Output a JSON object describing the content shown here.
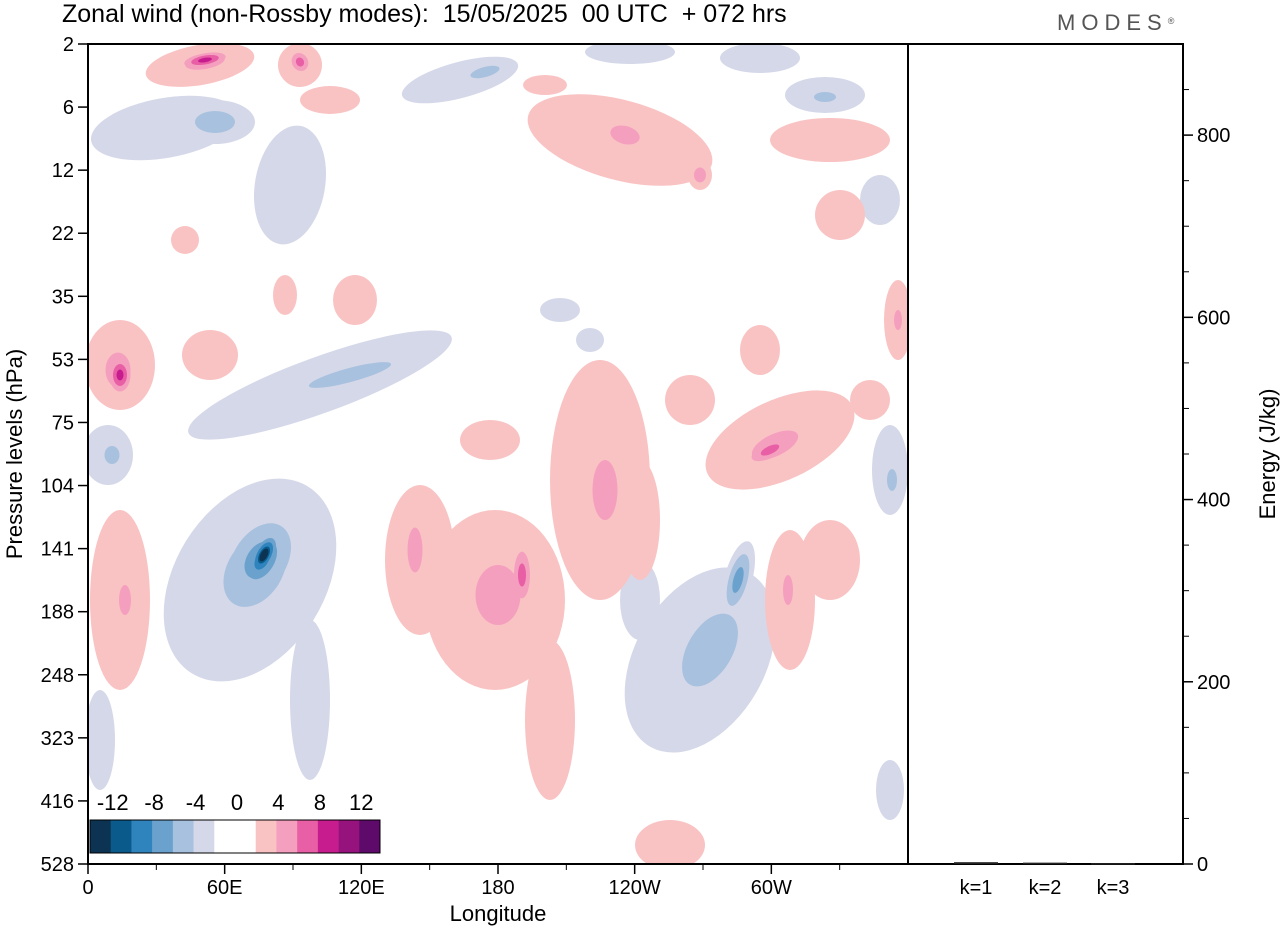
{
  "title": "Zonal wind (non-Rossby modes):  15/05/2025  00 UTC  + 072 hrs",
  "logo": "MODES",
  "logo_mark": "®",
  "colors": {
    "neg": [
      "#0d3352",
      "#0a5a8c",
      "#2f84be",
      "#6aa1cd",
      "#a8c1de",
      "#d5d8e9"
    ],
    "zero": "#ffffff",
    "pos": [
      "#f9c3c3",
      "#f59fbf",
      "#e95fa6",
      "#c71c8e",
      "#96137e",
      "#5e0a6a"
    ]
  },
  "chart_data": [
    {
      "type": "heatmap",
      "variable": "Zonal wind (non-Rossby modes)",
      "xlabel": "Longitude",
      "ylabel": "Pressure levels (hPa)",
      "x_ticks": [
        "0",
        "60E",
        "120E",
        "180",
        "120W",
        "60W"
      ],
      "y_ticks": [
        "2",
        "6",
        "12",
        "22",
        "35",
        "53",
        "75",
        "104",
        "141",
        "188",
        "248",
        "323",
        "416",
        "528"
      ],
      "colorbar_labels": [
        "-12",
        "-8",
        "-4",
        "0",
        "4",
        "8",
        "12"
      ],
      "colorbar_levels": [
        -14,
        -12,
        -10,
        -8,
        -6,
        -4,
        -2,
        2,
        4,
        6,
        8,
        10,
        12,
        14
      ],
      "features": [
        {
          "lon": 72,
          "level": "141",
          "value": -14
        },
        {
          "lon": 30,
          "level": "6",
          "value": -5
        },
        {
          "lon": 5,
          "level": "75",
          "value": -6
        },
        {
          "lon": 50,
          "level": "2",
          "value": 10
        },
        {
          "lon": 8,
          "level": "53",
          "value": 8
        },
        {
          "lon": 290,
          "level": "75",
          "value": 8
        },
        {
          "lon": 160,
          "level": "141",
          "value": 5
        },
        {
          "lon": 260,
          "level": "188",
          "value": -5
        },
        {
          "lon": 285,
          "level": "141",
          "value": -6
        },
        {
          "lon": 215,
          "level": "12",
          "value": 4
        }
      ]
    },
    {
      "type": "bar",
      "categories": [
        "k=1",
        "k=2",
        "k=3"
      ],
      "values": [
        2,
        1.5,
        1
      ],
      "ylabel": "Energy (J/kg)",
      "y_ticks": [
        "0",
        "200",
        "400",
        "600",
        "800"
      ],
      "ylim": [
        0,
        900
      ]
    }
  ]
}
